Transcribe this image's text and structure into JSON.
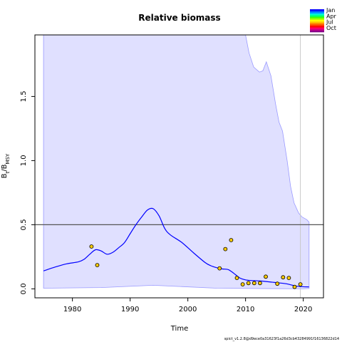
{
  "chart_data": {
    "type": "line",
    "title": "Relative biomass",
    "xlabel": "Time",
    "ylabel_main": "B",
    "ylabel_sub1": "t",
    "ylabel_mid": "/B",
    "ylabel_sub2": "MSY",
    "xlim": [
      1973.5,
      2023.5
    ],
    "ylim": [
      -0.07,
      1.98
    ],
    "x_ticks": [
      {
        "value": 1980,
        "label": "1980"
      },
      {
        "value": 1990,
        "label": "1990"
      },
      {
        "value": 2000,
        "label": "2000"
      },
      {
        "value": 2010,
        "label": "2010"
      },
      {
        "value": 2020,
        "label": "2020"
      }
    ],
    "y_ticks": [
      {
        "value": 0.0,
        "label": "0.0"
      },
      {
        "value": 0.5,
        "label": "0.5"
      },
      {
        "value": 1.0,
        "label": "1.0"
      },
      {
        "value": 1.5,
        "label": "1.5"
      }
    ],
    "reference_line": 0.5,
    "vertical_line_x": 2019.5,
    "colors": {
      "band_fill": "#e0e0ff",
      "band_edge": "#9a9aff",
      "line": "#0000ff",
      "points": "#ffcc00",
      "ref_line": "#555555",
      "vline": "#c8c8c8"
    },
    "estimate": {
      "x": [
        1975,
        1977,
        1979,
        1981,
        1982,
        1983,
        1984,
        1985,
        1986,
        1987,
        1988,
        1989,
        1990,
        1991,
        1992,
        1993,
        1994,
        1995,
        1996,
        1997,
        1999,
        2001,
        2003,
        2004,
        2005,
        2006,
        2007,
        2008,
        2009,
        2010,
        2011,
        2013,
        2015,
        2017,
        2019,
        2021
      ],
      "y": [
        0.14,
        0.17,
        0.195,
        0.21,
        0.23,
        0.27,
        0.305,
        0.295,
        0.27,
        0.285,
        0.32,
        0.36,
        0.43,
        0.5,
        0.56,
        0.615,
        0.625,
        0.57,
        0.47,
        0.42,
        0.36,
        0.28,
        0.205,
        0.18,
        0.165,
        0.155,
        0.15,
        0.12,
        0.085,
        0.07,
        0.065,
        0.06,
        0.05,
        0.04,
        0.02,
        0.015
      ]
    },
    "upper_band": {
      "x": [
        1975,
        2010,
        2010.6,
        2011.4,
        2012.4,
        2013,
        2013.6,
        2014.4,
        2015.2,
        2015.8,
        2016.4,
        2017.2,
        2017.8,
        2018.4,
        2019.2,
        2019.8,
        2020.6,
        2021
      ],
      "y": [
        1.98,
        1.98,
        1.84,
        1.73,
        1.69,
        1.7,
        1.77,
        1.66,
        1.44,
        1.3,
        1.23,
        1.0,
        0.8,
        0.67,
        0.59,
        0.56,
        0.54,
        0.52
      ]
    },
    "lower_band": {
      "x": [
        1975,
        1985,
        1994,
        2005,
        2020,
        2021
      ],
      "y": [
        0.005,
        0.01,
        0.028,
        0.005,
        0.0,
        0.003
      ]
    },
    "observations": {
      "x": [
        1983.3,
        1984.3,
        2005.5,
        2006.5,
        2007.5,
        2008.5,
        2009.5,
        2010.5,
        2011.5,
        2012.5,
        2013.5,
        2015.5,
        2016.5,
        2017.5,
        2018.5,
        2019.5
      ],
      "y": [
        0.33,
        0.185,
        0.16,
        0.31,
        0.38,
        0.085,
        0.035,
        0.045,
        0.045,
        0.045,
        0.095,
        0.04,
        0.09,
        0.085,
        0.015,
        0.035
      ]
    },
    "legend": {
      "placement": "top-right",
      "labels": [
        "Jan",
        "Apr",
        "Jul",
        "Oct"
      ],
      "gradient_colors": [
        "#0000ff",
        "#0055ff",
        "#00aaff",
        "#00ffcc",
        "#00ff66",
        "#44ff00",
        "#aaff00",
        "#ffff00",
        "#ffcc00",
        "#ff8800",
        "#ff4400",
        "#ff0000",
        "#ff0066",
        "#cc0088",
        "#880088"
      ]
    },
    "footer": "spict_v1.2.8@d9ece0a31623f1a26d3cb43284991f16136822d14"
  }
}
